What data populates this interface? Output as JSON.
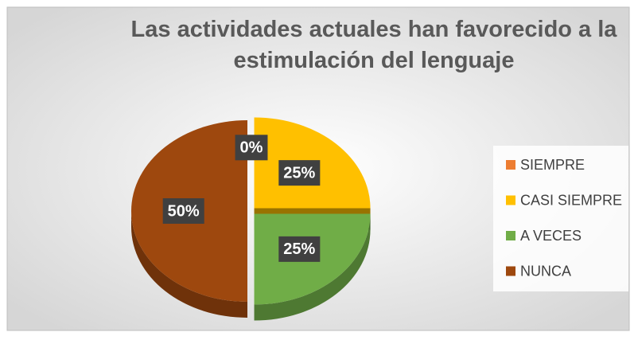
{
  "chart_data": {
    "type": "pie",
    "title": "Las actividades actuales han favorecido a la estimulación del lenguaje",
    "categories": [
      "SIEMPRE",
      "CASI SIEMPRE",
      "A VECES",
      "NUNCA"
    ],
    "values": [
      0,
      25,
      25,
      50
    ],
    "value_labels": [
      "0%",
      "25%",
      "25%",
      "50%"
    ],
    "colors": [
      "#ed7d31",
      "#ffc000",
      "#70ad47",
      "#9e480e"
    ],
    "legend": "right"
  }
}
